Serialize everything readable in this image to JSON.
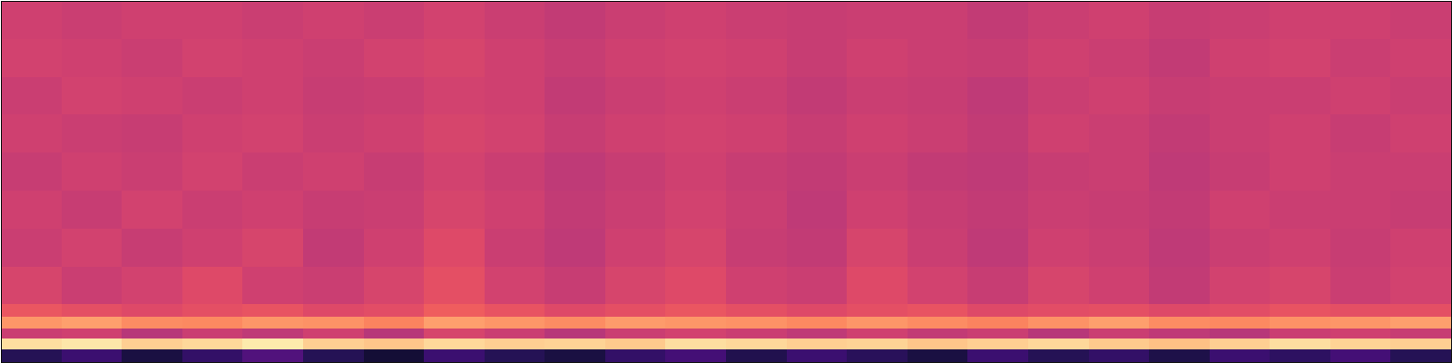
{
  "chart_data": {
    "type": "heatmap",
    "color": "magma",
    "tick_labels": false,
    "xlim": [
      0,
      24
    ],
    "ylim": [
      0,
      100
    ],
    "zlim": [
      0,
      1
    ],
    "x_bins": [
      0,
      1,
      2,
      3,
      4,
      5,
      6,
      7,
      8,
      9,
      10,
      11,
      12,
      13,
      14,
      15,
      16,
      17,
      18,
      19,
      20,
      21,
      22,
      23,
      24
    ],
    "y_bins": [
      0,
      3.5,
      6.5,
      9.2,
      12.5,
      16,
      26.5,
      37,
      47.5,
      58,
      68.5,
      79,
      89.5,
      100
    ],
    "cells": [
      [
        0.15,
        0.2,
        0.12,
        0.18,
        0.25,
        0.15,
        0.1,
        0.2,
        0.15,
        0.12,
        0.18,
        0.22,
        0.14,
        0.2,
        0.16,
        0.12,
        0.2,
        0.15,
        0.18,
        0.13,
        0.2,
        0.17,
        0.22,
        0.15
      ],
      [
        0.93,
        0.95,
        0.9,
        0.92,
        0.96,
        0.9,
        0.88,
        0.92,
        0.9,
        0.91,
        0.89,
        0.93,
        0.92,
        0.9,
        0.91,
        0.88,
        0.9,
        0.92,
        0.89,
        0.87,
        0.9,
        0.93,
        0.91,
        0.9
      ],
      [
        0.55,
        0.56,
        0.5,
        0.55,
        0.52,
        0.56,
        0.5,
        0.58,
        0.55,
        0.5,
        0.55,
        0.57,
        0.55,
        0.52,
        0.56,
        0.53,
        0.55,
        0.5,
        0.55,
        0.52,
        0.5,
        0.55,
        0.56,
        0.54
      ],
      [
        0.78,
        0.8,
        0.76,
        0.75,
        0.78,
        0.77,
        0.74,
        0.8,
        0.78,
        0.76,
        0.79,
        0.78,
        0.77,
        0.75,
        0.78,
        0.76,
        0.74,
        0.77,
        0.8,
        0.76,
        0.75,
        0.77,
        0.78,
        0.8
      ],
      [
        0.64,
        0.62,
        0.6,
        0.62,
        0.63,
        0.6,
        0.61,
        0.66,
        0.63,
        0.6,
        0.62,
        0.64,
        0.62,
        0.6,
        0.62,
        0.63,
        0.6,
        0.61,
        0.62,
        0.6,
        0.61,
        0.63,
        0.62,
        0.62
      ],
      [
        0.58,
        0.55,
        0.57,
        0.6,
        0.56,
        0.55,
        0.58,
        0.62,
        0.57,
        0.54,
        0.58,
        0.6,
        0.56,
        0.55,
        0.6,
        0.57,
        0.54,
        0.58,
        0.56,
        0.53,
        0.57,
        0.58,
        0.55,
        0.57
      ],
      [
        0.55,
        0.57,
        0.54,
        0.56,
        0.58,
        0.53,
        0.56,
        0.6,
        0.55,
        0.52,
        0.56,
        0.58,
        0.54,
        0.53,
        0.58,
        0.55,
        0.52,
        0.56,
        0.55,
        0.52,
        0.55,
        0.56,
        0.54,
        0.56
      ],
      [
        0.56,
        0.54,
        0.57,
        0.55,
        0.56,
        0.54,
        0.55,
        0.58,
        0.56,
        0.53,
        0.55,
        0.57,
        0.55,
        0.52,
        0.56,
        0.54,
        0.53,
        0.55,
        0.54,
        0.53,
        0.56,
        0.55,
        0.55,
        0.54
      ],
      [
        0.54,
        0.56,
        0.55,
        0.57,
        0.55,
        0.56,
        0.54,
        0.57,
        0.55,
        0.52,
        0.54,
        0.56,
        0.54,
        0.53,
        0.55,
        0.53,
        0.52,
        0.54,
        0.55,
        0.52,
        0.54,
        0.56,
        0.55,
        0.55
      ],
      [
        0.56,
        0.55,
        0.54,
        0.56,
        0.57,
        0.55,
        0.56,
        0.58,
        0.57,
        0.54,
        0.56,
        0.57,
        0.56,
        0.54,
        0.56,
        0.55,
        0.53,
        0.56,
        0.55,
        0.53,
        0.55,
        0.56,
        0.54,
        0.56
      ],
      [
        0.55,
        0.57,
        0.56,
        0.55,
        0.56,
        0.54,
        0.55,
        0.57,
        0.56,
        0.53,
        0.55,
        0.56,
        0.55,
        0.53,
        0.55,
        0.54,
        0.52,
        0.55,
        0.56,
        0.54,
        0.55,
        0.55,
        0.56,
        0.55
      ],
      [
        0.57,
        0.56,
        0.55,
        0.57,
        0.56,
        0.55,
        0.57,
        0.58,
        0.56,
        0.54,
        0.56,
        0.57,
        0.56,
        0.54,
        0.56,
        0.55,
        0.54,
        0.56,
        0.55,
        0.53,
        0.56,
        0.57,
        0.55,
        0.56
      ],
      [
        0.56,
        0.55,
        0.56,
        0.56,
        0.55,
        0.56,
        0.55,
        0.57,
        0.55,
        0.53,
        0.55,
        0.56,
        0.55,
        0.54,
        0.55,
        0.55,
        0.53,
        0.55,
        0.56,
        0.54,
        0.55,
        0.56,
        0.56,
        0.55
      ]
    ]
  }
}
